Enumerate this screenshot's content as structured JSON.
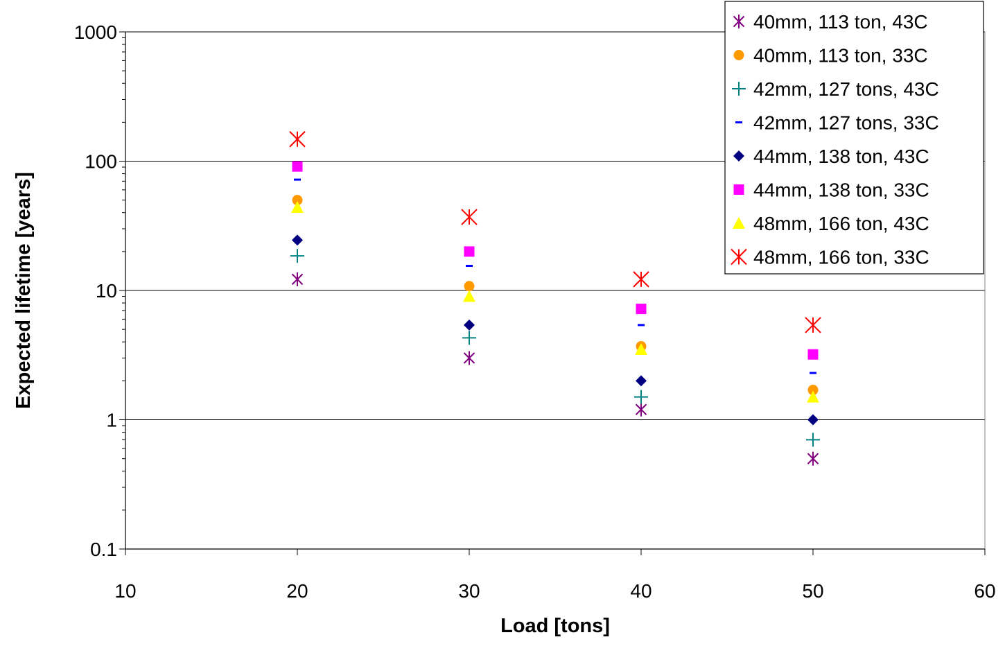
{
  "chart_data": {
    "type": "scatter",
    "title": "",
    "xlabel": "Load [tons]",
    "ylabel": "Expected lifetime [years]",
    "xlim": [
      10,
      60
    ],
    "ylim": [
      0.1,
      1000
    ],
    "y_scale": "log",
    "x_ticks": [
      "10",
      "20",
      "30",
      "40",
      "50",
      "60"
    ],
    "y_ticks": [
      "0.1",
      "1",
      "10",
      "100",
      "1000"
    ],
    "grid": "horizontal major gridlines",
    "legend_position": "top-right",
    "series": [
      {
        "name": "40mm, 113 ton, 43C",
        "marker": "asterisk",
        "color": "#800080",
        "x": [
          20,
          30,
          40,
          50
        ],
        "y": [
          12.2,
          3.0,
          1.2,
          0.5
        ]
      },
      {
        "name": "40mm, 113 ton, 33C",
        "marker": "circle",
        "color": "#ff9900",
        "x": [
          20,
          30,
          40,
          50
        ],
        "y": [
          50,
          10.8,
          3.7,
          1.7
        ]
      },
      {
        "name": "42mm, 127 tons, 43C",
        "marker": "plus",
        "color": "#008080",
        "x": [
          20,
          30,
          40,
          50
        ],
        "y": [
          18.5,
          4.3,
          1.5,
          0.7
        ]
      },
      {
        "name": "42mm, 127 tons, 33C",
        "marker": "dash",
        "color": "#0000ff",
        "x": [
          20,
          30,
          40,
          50
        ],
        "y": [
          72,
          15.5,
          5.4,
          2.3
        ]
      },
      {
        "name": "44mm, 138 ton, 43C",
        "marker": "diamond",
        "color": "#000080",
        "x": [
          20,
          30,
          40,
          50
        ],
        "y": [
          24.5,
          5.4,
          2.0,
          1.0
        ]
      },
      {
        "name": "44mm, 138 ton, 33C",
        "marker": "square",
        "color": "#ff00ff",
        "x": [
          20,
          30,
          40,
          50
        ],
        "y": [
          91,
          20,
          7.2,
          3.2
        ]
      },
      {
        "name": "48mm, 166 ton, 43C",
        "marker": "triangle",
        "color": "#ffff00",
        "x": [
          20,
          30,
          40,
          50
        ],
        "y": [
          44,
          9.0,
          3.5,
          1.5
        ]
      },
      {
        "name": "48mm, 166 ton, 33C",
        "marker": "x",
        "color": "#ff0000",
        "x": [
          20,
          30,
          40,
          50
        ],
        "y": [
          148,
          37,
          12.2,
          5.4
        ]
      }
    ]
  }
}
